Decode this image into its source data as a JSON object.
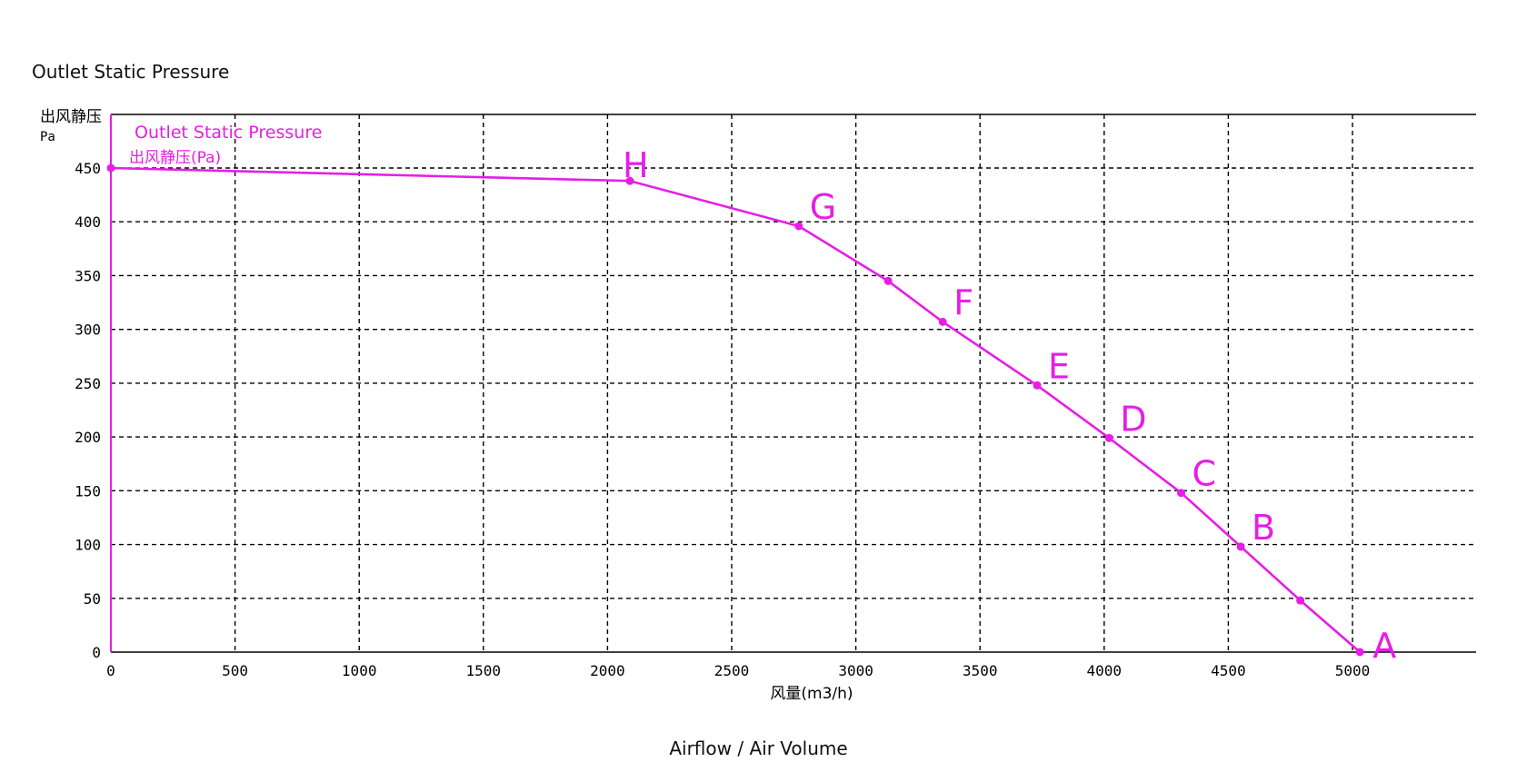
{
  "header": {
    "title": "Outlet Static Pressure"
  },
  "footer": {
    "title": "Airflow / Air Volume"
  },
  "chart_data": {
    "type": "line",
    "title": "",
    "ylabel_cn": "出风静压",
    "ylabel_unit": "Pa",
    "xlabel": "风量(m3/h)",
    "legend": {
      "name": "Outlet Static Pressure",
      "name_cn": "出风静压(Pa)",
      "placement": "top-left"
    },
    "xlim": [
      0,
      5500
    ],
    "ylim": [
      0,
      500
    ],
    "x_ticks": [
      0,
      500,
      1000,
      1500,
      2000,
      2500,
      3000,
      3500,
      4000,
      4500,
      5000
    ],
    "y_ticks": [
      0,
      50,
      100,
      150,
      200,
      250,
      300,
      350,
      400,
      450
    ],
    "grid": true,
    "colors": {
      "series": "#e61ee6",
      "grid": "#000000",
      "axis": "#000000"
    },
    "series": [
      {
        "name": "Outlet Static Pressure",
        "points": [
          {
            "x": 0,
            "y": 450,
            "label": ""
          },
          {
            "x": 2090,
            "y": 438,
            "label": "H"
          },
          {
            "x": 2770,
            "y": 396,
            "label": "G"
          },
          {
            "x": 3130,
            "y": 345,
            "label": ""
          },
          {
            "x": 3350,
            "y": 307,
            "label": "F"
          },
          {
            "x": 3730,
            "y": 248,
            "label": "E"
          },
          {
            "x": 4020,
            "y": 199,
            "label": "D"
          },
          {
            "x": 4310,
            "y": 148,
            "label": "C"
          },
          {
            "x": 4550,
            "y": 98,
            "label": "B"
          },
          {
            "x": 4790,
            "y": 48,
            "label": ""
          },
          {
            "x": 5030,
            "y": 0,
            "label": "A"
          }
        ]
      }
    ]
  }
}
